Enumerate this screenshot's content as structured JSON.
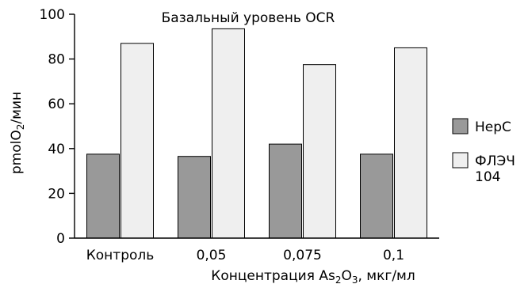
{
  "chart_data": {
    "type": "bar",
    "title": "Базальный уровень OCR",
    "xlabel": {
      "prefix": "Концентрация As",
      "sub1": "2",
      "mid": "O",
      "sub2": "3",
      "suffix": ", мкг/мл"
    },
    "ylabel": {
      "prefix": "pmolO",
      "sub": "2",
      "suffix": "/мин"
    },
    "categories": [
      "Контроль",
      "0,05",
      "0,075",
      "0,1"
    ],
    "series": [
      {
        "name": "HepC",
        "color": "#999999",
        "values": [
          37.5,
          36.5,
          42,
          37.5
        ]
      },
      {
        "name": "ФЛЭЧ 104",
        "name_lines": [
          "ФЛЭЧ",
          "104"
        ],
        "color": "#efefef",
        "values": [
          87,
          93.5,
          77.5,
          85
        ]
      }
    ],
    "ylim": [
      0,
      100
    ],
    "yticks": [
      0,
      20,
      40,
      60,
      80,
      100
    ],
    "grid": false,
    "legend_position": "right"
  }
}
